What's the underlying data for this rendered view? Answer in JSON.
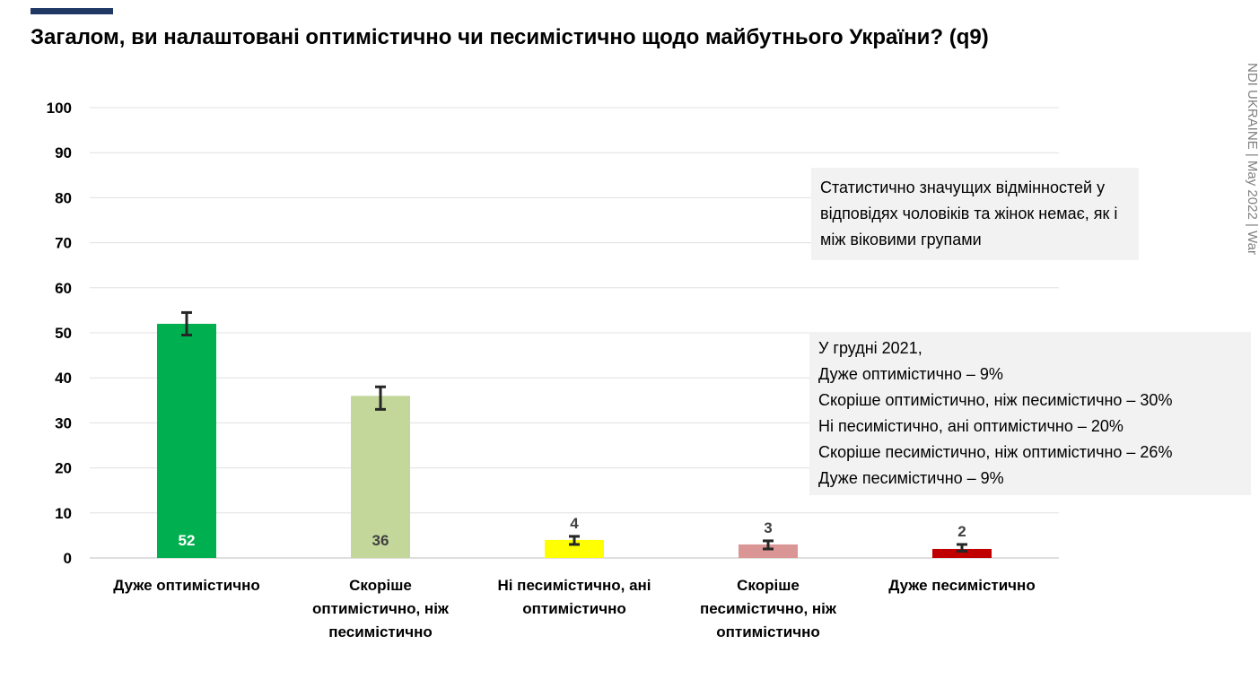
{
  "title": "Загалом, ви налаштовані оптимістично чи песимістично щодо майбутнього України? (q9)",
  "side_note": "NDI UKRAINE | May 2022 | War",
  "notes": {
    "significance": "Статистично значущих відмінностей у відповідях чоловіків та жінок немає, як і між віковими групами",
    "december_2021": [
      "У грудні 2021,",
      "Дуже оптимістично – 9%",
      "Скоріше оптимістично, ніж песимістично – 30%",
      "Ні песимістично, ані оптимістично – 20%",
      "Скоріше песимістично, ніж оптимістично – 26%",
      "Дуже песимістично – 9%"
    ]
  },
  "colors": {
    "accent": "#1f3864",
    "bars": [
      "#00b050",
      "#c4d79b",
      "#ffff00",
      "#d99694",
      "#c00000"
    ],
    "error_bar": "#262626",
    "gridline": "#e0e0e0"
  },
  "chart_data": {
    "type": "bar",
    "categories": [
      "Дуже оптимістично",
      "Скоріше оптимістично, ніж песимістично",
      "Ні песимістично, ані оптимістично",
      "Скоріше песимістично, ніж оптимістично",
      "Дуже песимістично"
    ],
    "values": [
      52,
      36,
      4,
      3,
      2
    ],
    "error_bars": [
      [
        49.5,
        54.5
      ],
      [
        33,
        38
      ],
      [
        3,
        4.8
      ],
      [
        2,
        3.8
      ],
      [
        1.5,
        3
      ]
    ],
    "data_labels": [
      "52",
      "36",
      "4",
      "3",
      "2"
    ],
    "y_ticks": [
      "0",
      "10",
      "20",
      "30",
      "40",
      "50",
      "60",
      "70",
      "80",
      "90",
      "100"
    ],
    "ylim": [
      0,
      100
    ],
    "grid": true,
    "legend": "none"
  }
}
